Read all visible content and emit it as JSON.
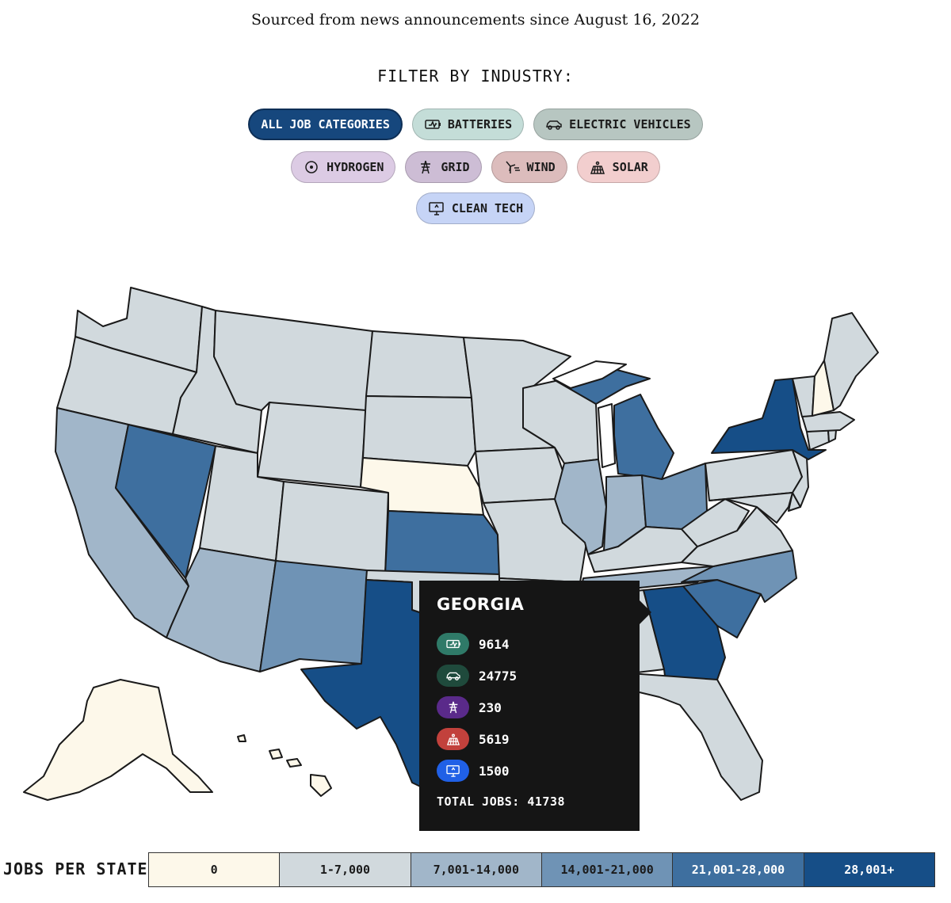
{
  "subtitle": "Sourced from news announcements since August 16, 2022",
  "filter": {
    "heading": "FILTER BY INDUSTRY:",
    "pills": [
      {
        "label": "ALL JOB CATEGORIES",
        "icon": "",
        "bg": "#16477d",
        "active": true
      },
      {
        "label": "BATTERIES",
        "icon": "battery-icon",
        "bg": "#c4ddd8",
        "active": false
      },
      {
        "label": "ELECTRIC VEHICLES",
        "icon": "car-icon",
        "bg": "#b7c6c1",
        "active": false
      },
      {
        "label": "HYDROGEN",
        "icon": "hydrogen-icon",
        "bg": "#dccbe4",
        "active": false
      },
      {
        "label": "GRID",
        "icon": "pylon-icon",
        "bg": "#cdbdd5",
        "active": false
      },
      {
        "label": "WIND",
        "icon": "wind-turbine-icon",
        "bg": "#dcbcbc",
        "active": false
      },
      {
        "label": "SOLAR",
        "icon": "solar-panel-icon",
        "bg": "#f2cece",
        "active": false
      },
      {
        "label": "CLEAN TECH",
        "icon": "monitor-icon",
        "bg": "#c6d4f6",
        "active": false
      }
    ]
  },
  "map": {
    "colors": {
      "zero": "#fdf8ea",
      "b1": "#d1d9dd",
      "b2": "#a1b6c9",
      "b3": "#6f93b5",
      "b4": "#3e6f9f",
      "b5": "#164e87",
      "lake": "#ffffff"
    },
    "states": [
      {
        "name": "Washington",
        "bin": "b1"
      },
      {
        "name": "Oregon",
        "bin": "b1"
      },
      {
        "name": "California",
        "bin": "b2"
      },
      {
        "name": "Nevada",
        "bin": "b4"
      },
      {
        "name": "Idaho",
        "bin": "b1"
      },
      {
        "name": "Montana",
        "bin": "b1"
      },
      {
        "name": "Wyoming",
        "bin": "b1"
      },
      {
        "name": "Utah",
        "bin": "b1"
      },
      {
        "name": "Arizona",
        "bin": "b2"
      },
      {
        "name": "Colorado",
        "bin": "b1"
      },
      {
        "name": "New Mexico",
        "bin": "b3"
      },
      {
        "name": "North Dakota",
        "bin": "b1"
      },
      {
        "name": "South Dakota",
        "bin": "b1"
      },
      {
        "name": "Nebraska",
        "bin": "zero"
      },
      {
        "name": "Kansas",
        "bin": "b4"
      },
      {
        "name": "Oklahoma",
        "bin": "b1"
      },
      {
        "name": "Texas",
        "bin": "b5"
      },
      {
        "name": "Minnesota",
        "bin": "b1"
      },
      {
        "name": "Iowa",
        "bin": "b1"
      },
      {
        "name": "Missouri",
        "bin": "b1"
      },
      {
        "name": "Arkansas",
        "bin": "b1"
      },
      {
        "name": "Louisiana",
        "bin": "b1"
      },
      {
        "name": "Wisconsin",
        "bin": "b1"
      },
      {
        "name": "Michigan",
        "bin": "b4"
      },
      {
        "name": "Illinois",
        "bin": "b2"
      },
      {
        "name": "Indiana",
        "bin": "b2"
      },
      {
        "name": "Ohio",
        "bin": "b3"
      },
      {
        "name": "Kentucky",
        "bin": "b1"
      },
      {
        "name": "Tennessee",
        "bin": "b2"
      },
      {
        "name": "Mississippi",
        "bin": "b1"
      },
      {
        "name": "Alabama",
        "bin": "b1"
      },
      {
        "name": "Georgia",
        "bin": "b5"
      },
      {
        "name": "Florida",
        "bin": "b1"
      },
      {
        "name": "South Carolina",
        "bin": "b4"
      },
      {
        "name": "North Carolina",
        "bin": "b3"
      },
      {
        "name": "Virginia",
        "bin": "b1"
      },
      {
        "name": "West Virginia",
        "bin": "b1"
      },
      {
        "name": "Pennsylvania",
        "bin": "b1"
      },
      {
        "name": "New York",
        "bin": "b5"
      },
      {
        "name": "Vermont",
        "bin": "b1"
      },
      {
        "name": "New Hampshire",
        "bin": "zero"
      },
      {
        "name": "Maine",
        "bin": "b1"
      },
      {
        "name": "Massachusetts",
        "bin": "b1"
      },
      {
        "name": "Connecticut",
        "bin": "b1"
      },
      {
        "name": "Rhode Island",
        "bin": "b1"
      },
      {
        "name": "New Jersey",
        "bin": "b1"
      },
      {
        "name": "Delaware",
        "bin": "b1"
      },
      {
        "name": "Maryland",
        "bin": "b1"
      },
      {
        "name": "Alaska",
        "bin": "zero"
      },
      {
        "name": "Hawaii",
        "bin": "zero"
      }
    ]
  },
  "tooltip": {
    "state": "GEORGIA",
    "rows": [
      {
        "icon": "battery-icon",
        "color": "#2f7a68",
        "value": "9614"
      },
      {
        "icon": "car-icon",
        "color": "#1f4a3c",
        "value": "24775"
      },
      {
        "icon": "pylon-icon",
        "color": "#5a2a8a",
        "value": "230"
      },
      {
        "icon": "solar-panel-icon",
        "color": "#c2413c",
        "value": "5619"
      },
      {
        "icon": "monitor-icon",
        "color": "#2060e6",
        "value": "1500"
      }
    ],
    "total": "TOTAL JOBS: 41738"
  },
  "legend": {
    "label": "JOBS PER STATE",
    "bins": [
      {
        "label": "0",
        "color": "#fdf8ea",
        "text": "#1b1b1b"
      },
      {
        "label": "1-7,000",
        "color": "#d1d9dd",
        "text": "#1b1b1b"
      },
      {
        "label": "7,001-14,000",
        "color": "#a1b6c9",
        "text": "#1b1b1b"
      },
      {
        "label": "14,001-21,000",
        "color": "#6f93b5",
        "text": "#1b1b1b"
      },
      {
        "label": "21,001-28,000",
        "color": "#3e6f9f",
        "text": "#ffffff"
      },
      {
        "label": "28,001+",
        "color": "#164e87",
        "text": "#ffffff"
      }
    ]
  }
}
